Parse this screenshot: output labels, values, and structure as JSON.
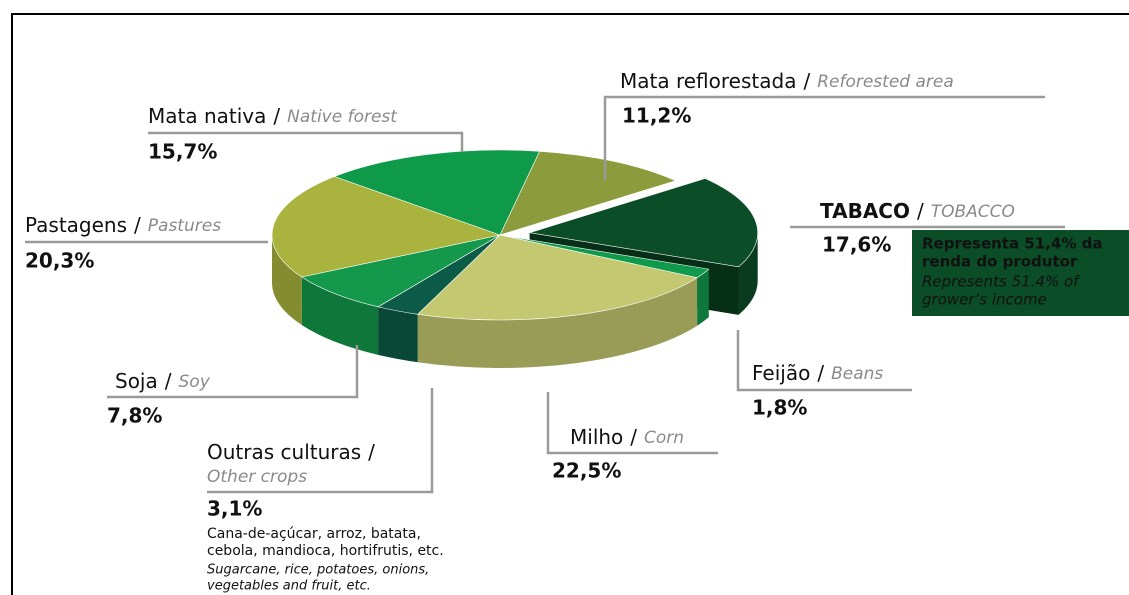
{
  "chart_data": {
    "type": "pie",
    "categories": [
      "Mata reflorestada",
      "TABACO",
      "Feijão",
      "Milho",
      "Outras culturas",
      "Soja",
      "Pastagens",
      "Mata nativa"
    ],
    "translations": [
      "Reforested area",
      "TOBACCO",
      "Beans",
      "Corn",
      "Other crops",
      "Soy",
      "Pastures",
      "Native forest"
    ],
    "separator": "/",
    "values": [
      11.2,
      17.6,
      1.8,
      22.5,
      3.1,
      7.8,
      20.3,
      15.7
    ],
    "value_labels": [
      "11,2%",
      "17,6%",
      "1,8%",
      "22,5%",
      "3,1%",
      "7,8%",
      "20,3%",
      "15,7%"
    ],
    "colors": [
      "#8c9b3c",
      "#0b4d27",
      "#0f9a4c",
      "#c4c870",
      "#0b5b47",
      "#14994c",
      "#a9b33d",
      "#0f9a49"
    ],
    "annotations": {
      "tobacco_note": {
        "lines_pt": [
          "Representa 51,4% da",
          "renda do produtor"
        ],
        "lines_en": [
          "Represents 51.4% of",
          "grower’s income"
        ]
      },
      "other_crops_note": {
        "lines_pt": [
          "Cana-de-açúcar, arroz, batata,",
          "cebola, mandioca, hortifrutis, etc."
        ],
        "lines_en": [
          "Sugarcane, rice, potatoes, onions,",
          "vegetables and fruit, etc."
        ]
      }
    }
  }
}
